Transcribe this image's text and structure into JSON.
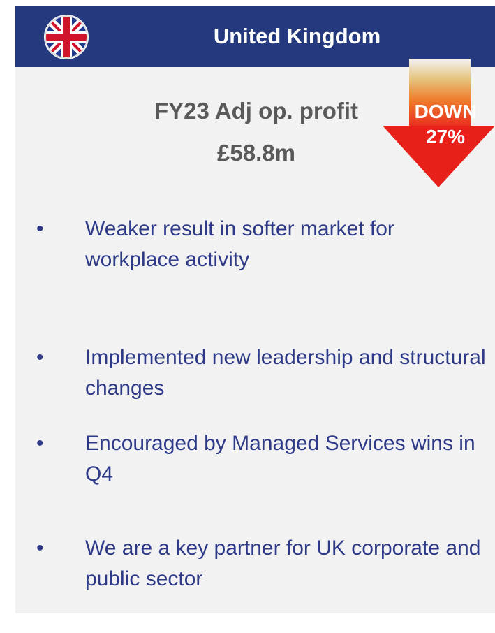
{
  "header": {
    "title": "United Kingdom"
  },
  "headline": {
    "label": "FY23 Adj op. profit",
    "value": "£58.8m"
  },
  "badge": {
    "direction": "DOWN",
    "change": "27%"
  },
  "bullets": [
    "Weaker result in softer market for workplace activity",
    "Implemented new leadership and structural changes",
    "Encouraged by Managed Services wins in Q4",
    "We are a key partner for UK corporate and public sector"
  ]
}
